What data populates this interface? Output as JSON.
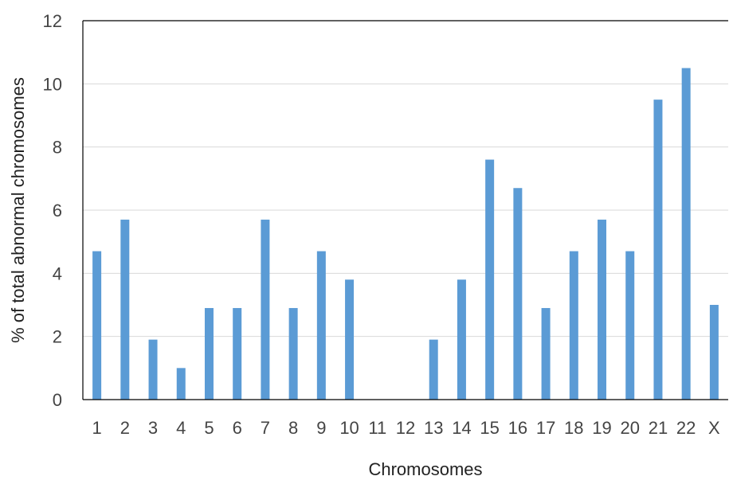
{
  "chart_data": {
    "type": "bar",
    "categories": [
      "1",
      "2",
      "3",
      "4",
      "5",
      "6",
      "7",
      "8",
      "9",
      "10",
      "11",
      "12",
      "13",
      "14",
      "15",
      "16",
      "17",
      "18",
      "19",
      "20",
      "21",
      "22",
      "X"
    ],
    "values": [
      4.7,
      5.7,
      1.9,
      1.0,
      2.9,
      2.9,
      5.7,
      2.9,
      4.7,
      3.8,
      0,
      0,
      1.9,
      3.8,
      7.6,
      6.7,
      2.9,
      4.7,
      5.7,
      4.7,
      9.5,
      10.5,
      3.0
    ],
    "title": "",
    "xlabel": "Chromosomes",
    "ylabel": "% of total abnormal chromosomes",
    "ylim": [
      0,
      12
    ],
    "yticks": [
      0,
      2,
      4,
      6,
      8,
      10,
      12
    ],
    "grid": true,
    "bar_color": "#5b9bd5",
    "grid_color": "#d9d9d9",
    "axis_color": "#000000"
  }
}
